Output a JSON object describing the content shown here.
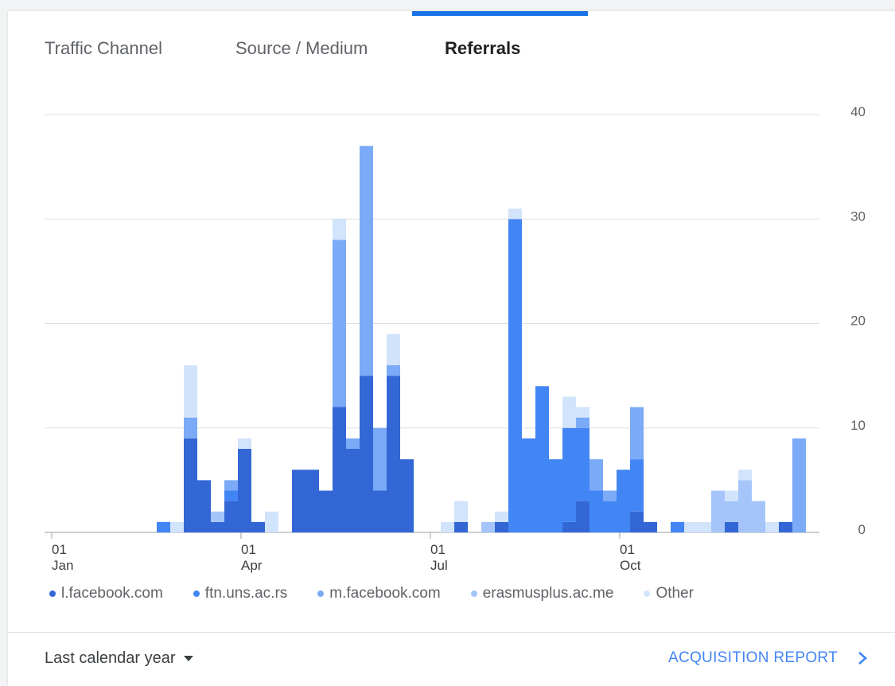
{
  "tabs": [
    {
      "label": "Traffic Channel",
      "active": false
    },
    {
      "label": "Source / Medium",
      "active": false
    },
    {
      "label": "Referrals",
      "active": true
    }
  ],
  "legend": [
    {
      "label": "l.facebook.com",
      "color": "#3367d6"
    },
    {
      "label": "ftn.uns.ac.rs",
      "color": "#4285f4"
    },
    {
      "label": "m.facebook.com",
      "color": "#7baaf7"
    },
    {
      "label": "erasmusplus.ac.me",
      "color": "#a5c5fa"
    },
    {
      "label": "Other",
      "color": "#d2e3fc"
    }
  ],
  "footer": {
    "date_range": "Last calendar year",
    "report_link": "ACQUISITION REPORT"
  },
  "chart_data": {
    "type": "bar",
    "stacked": true,
    "ylim": [
      0,
      40
    ],
    "yticks": [
      0,
      10,
      20,
      30,
      40
    ],
    "grid": true,
    "legend_position": "bottom",
    "xtick_labels": [
      {
        "week": 0,
        "day": "01",
        "month": "Jan"
      },
      {
        "week": 14,
        "day": "01",
        "month": "Apr"
      },
      {
        "week": 28,
        "day": "01",
        "month": "Jul"
      },
      {
        "week": 42,
        "day": "01",
        "month": "Oct"
      }
    ],
    "num_weeks": 56,
    "series": [
      {
        "name": "l.facebook.com",
        "color": "#3367d6",
        "values": [
          0,
          0,
          0,
          0,
          0,
          0,
          0,
          0,
          0,
          0,
          9,
          5,
          1,
          3,
          8,
          1,
          0,
          0,
          6,
          6,
          4,
          12,
          8,
          15,
          4,
          15,
          7,
          0,
          0,
          0,
          1,
          0,
          0,
          1,
          0,
          0,
          0,
          0,
          1,
          3,
          0,
          0,
          0,
          2,
          1,
          0,
          0,
          0,
          0,
          0,
          1,
          0,
          0,
          0,
          1,
          0
        ]
      },
      {
        "name": "ftn.uns.ac.rs",
        "color": "#4285f4",
        "values": [
          0,
          0,
          0,
          0,
          0,
          0,
          0,
          0,
          1,
          0,
          0,
          0,
          0,
          1,
          0,
          0,
          0,
          0,
          0,
          0,
          0,
          0,
          0,
          0,
          0,
          0,
          0,
          0,
          0,
          0,
          0,
          0,
          0,
          0,
          30,
          9,
          14,
          7,
          9,
          7,
          4,
          3,
          6,
          5,
          0,
          0,
          1,
          0,
          0,
          0,
          0,
          0,
          0,
          0,
          0,
          0
        ]
      },
      {
        "name": "m.facebook.com",
        "color": "#7baaf7",
        "values": [
          0,
          0,
          0,
          0,
          0,
          0,
          0,
          0,
          0,
          0,
          2,
          0,
          0,
          1,
          0,
          0,
          0,
          0,
          0,
          0,
          0,
          16,
          1,
          22,
          6,
          1,
          0,
          0,
          0,
          0,
          0,
          0,
          0,
          0,
          0,
          0,
          0,
          0,
          0,
          1,
          3,
          1,
          0,
          5,
          0,
          0,
          0,
          0,
          0,
          0,
          0,
          0,
          0,
          0,
          0,
          9
        ]
      },
      {
        "name": "erasmusplus.ac.me",
        "color": "#a5c5fa",
        "values": [
          0,
          0,
          0,
          0,
          0,
          0,
          0,
          0,
          0,
          0,
          0,
          0,
          1,
          0,
          0,
          0,
          0,
          0,
          0,
          0,
          0,
          0,
          0,
          0,
          0,
          0,
          0,
          0,
          0,
          0,
          0,
          0,
          1,
          0,
          0,
          0,
          0,
          0,
          0,
          0,
          0,
          0,
          0,
          0,
          0,
          0,
          0,
          0,
          0,
          4,
          2,
          5,
          3,
          0,
          0,
          0
        ]
      },
      {
        "name": "Other",
        "color": "#d2e3fc",
        "values": [
          0,
          0,
          0,
          0,
          0,
          0,
          0,
          0,
          0,
          1,
          5,
          0,
          0,
          0,
          1,
          0,
          2,
          0,
          0,
          0,
          0,
          2,
          0,
          0,
          0,
          3,
          0,
          0,
          0,
          1,
          2,
          0,
          0,
          1,
          1,
          0,
          0,
          0,
          3,
          1,
          0,
          0,
          0,
          0,
          0,
          0,
          0,
          1,
          1,
          0,
          1,
          1,
          0,
          1,
          0,
          0
        ]
      }
    ]
  }
}
